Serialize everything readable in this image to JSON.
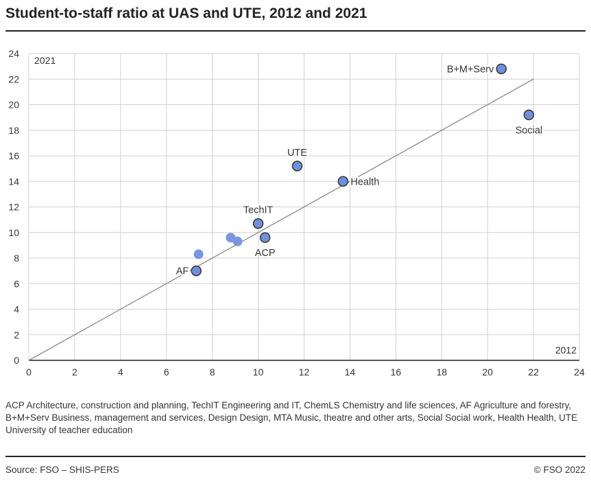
{
  "title": "Student-to-staff ratio at UAS and UTE, 2012 and 2021",
  "note": "ACP Architecture, construction and planning, TechIT Engineering and IT, ChemLS Chemistry and life sciences, AF Agriculture and forestry, B+M+Serv Business, management and services, Design Design, MTA Music, theatre and other arts, Social Social work, Health Health, UTE University of teacher education",
  "source": "Source: FSO – SHIS-PERS",
  "copyright": "© FSO 2022",
  "chart_data": {
    "type": "scatter",
    "xlabel": "2012",
    "ylabel": "2021",
    "xlim": [
      0,
      24
    ],
    "ylim": [
      0,
      24
    ],
    "xticks": [
      0,
      2,
      4,
      6,
      8,
      10,
      12,
      14,
      16,
      18,
      20,
      22,
      24
    ],
    "yticks": [
      0,
      2,
      4,
      6,
      8,
      10,
      12,
      14,
      16,
      18,
      20,
      22,
      24
    ],
    "grid": true,
    "reference_line": {
      "from": [
        0,
        0
      ],
      "to": [
        22,
        22
      ]
    },
    "colors": {
      "point": "#7090dc",
      "outline": "#333333",
      "grid": "#d0d0d0",
      "line": "#888888"
    },
    "points": [
      {
        "label": "B+M+Serv",
        "x": 20.6,
        "y": 22.8,
        "pos": "left"
      },
      {
        "label": "Social",
        "x": 21.8,
        "y": 19.2,
        "pos": "below"
      },
      {
        "label": "UTE",
        "x": 11.7,
        "y": 15.2,
        "pos": "above"
      },
      {
        "label": "Health",
        "x": 13.7,
        "y": 14.0,
        "pos": "right"
      },
      {
        "label": "TechIT",
        "x": 10.0,
        "y": 10.7,
        "pos": "above"
      },
      {
        "label": "ACP",
        "x": 10.3,
        "y": 9.6,
        "pos": "below"
      },
      {
        "label": "AF",
        "x": 7.3,
        "y": 7.0,
        "pos": "left"
      },
      {
        "label": "",
        "x": 7.4,
        "y": 8.3
      },
      {
        "label": "",
        "x": 8.8,
        "y": 9.6
      },
      {
        "label": "",
        "x": 9.1,
        "y": 9.3
      }
    ]
  }
}
